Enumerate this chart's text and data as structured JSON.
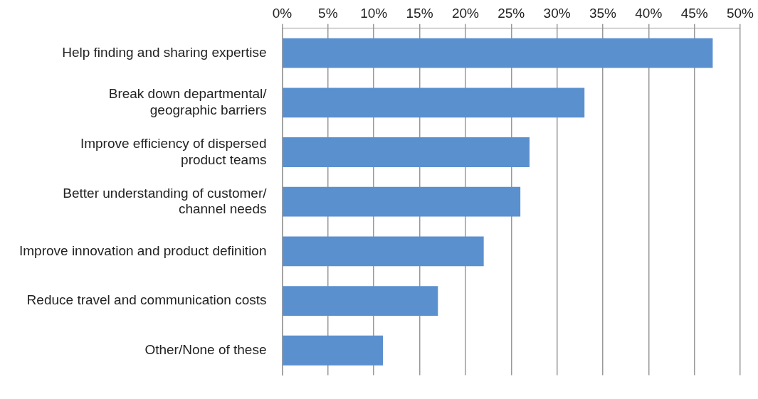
{
  "chart_data": {
    "type": "bar",
    "orientation": "horizontal",
    "categories": [
      "Help finding and sharing expertise",
      "Break down departmental/\ngeographic barriers",
      "Improve efficiency of dispersed\nproduct teams",
      "Better understanding of customer/\nchannel needs",
      "Improve innovation and product definition",
      "Reduce travel and communication costs",
      "Other/None of these"
    ],
    "values": [
      47,
      33,
      27,
      26,
      22,
      17,
      11
    ],
    "color": "#5b90cf",
    "xlim": [
      0,
      50
    ],
    "xticks": [
      {
        "value": 0,
        "label": "0%"
      },
      {
        "value": 5,
        "label": "5%"
      },
      {
        "value": 10,
        "label": "10%"
      },
      {
        "value": 15,
        "label": "15%"
      },
      {
        "value": 20,
        "label": "20%"
      },
      {
        "value": 25,
        "label": "25%"
      },
      {
        "value": 30,
        "label": "30%"
      },
      {
        "value": 35,
        "label": "35%"
      },
      {
        "value": 40,
        "label": "40%"
      },
      {
        "value": 45,
        "label": "45%"
      },
      {
        "value": 50,
        "label": "50%"
      }
    ],
    "grid": "x",
    "legend": false
  }
}
